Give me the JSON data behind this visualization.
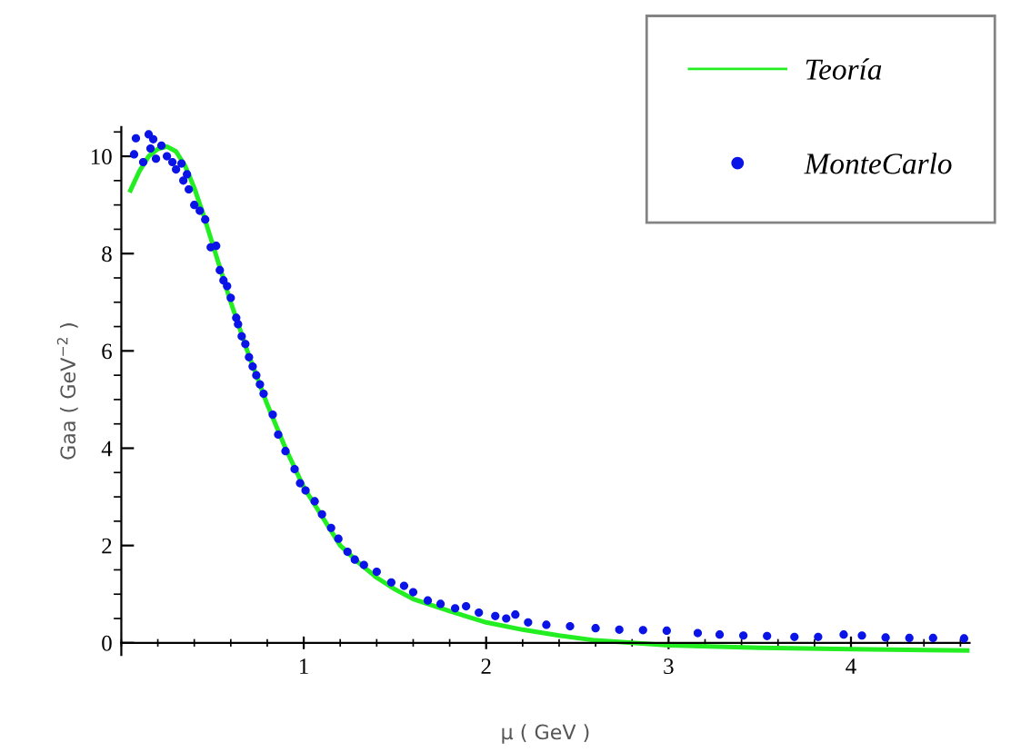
{
  "chart_data": {
    "type": "line",
    "xlabel": "μ ( GeV )",
    "ylabel": "Gaa ( GeV$^{−2}$ )",
    "xlim": [
      0,
      4.65
    ],
    "ylim": [
      -0.25,
      10.6
    ],
    "xticks": [
      1,
      2,
      3,
      4
    ],
    "yticks": [
      0,
      2,
      4,
      6,
      8,
      10
    ],
    "grid": false,
    "legend": "top right",
    "series": [
      {
        "name": "Teoría",
        "color": "#22ee22",
        "marker": "none",
        "line_style": "solid",
        "x": [
          0.05,
          0.1,
          0.15,
          0.2,
          0.25,
          0.3,
          0.35,
          0.4,
          0.45,
          0.5,
          0.55,
          0.6,
          0.7,
          0.8,
          0.9,
          1.0,
          1.1,
          1.2,
          1.3,
          1.4,
          1.5,
          1.6,
          1.8,
          2.0,
          2.2,
          2.4,
          2.6,
          2.8,
          3.0,
          3.5,
          4.0,
          4.65
        ],
        "values": [
          9.3,
          9.7,
          10.0,
          10.15,
          10.2,
          10.1,
          9.8,
          9.35,
          8.8,
          8.2,
          7.6,
          7.0,
          5.9,
          4.9,
          4.0,
          3.2,
          2.6,
          2.0,
          1.65,
          1.34,
          1.1,
          0.9,
          0.65,
          0.42,
          0.27,
          0.15,
          0.05,
          0.0,
          -0.05,
          -0.1,
          -0.13,
          -0.16
        ]
      },
      {
        "name": "MonteCarlo",
        "type": "scatter",
        "color": "#0a14e6",
        "marker": "circle",
        "x": [
          0.07,
          0.08,
          0.12,
          0.15,
          0.16,
          0.175,
          0.19,
          0.22,
          0.25,
          0.28,
          0.3,
          0.33,
          0.34,
          0.36,
          0.37,
          0.4,
          0.43,
          0.46,
          0.49,
          0.52,
          0.54,
          0.56,
          0.58,
          0.6,
          0.63,
          0.64,
          0.66,
          0.68,
          0.7,
          0.72,
          0.74,
          0.76,
          0.78,
          0.83,
          0.86,
          0.9,
          0.95,
          0.98,
          1.01,
          1.06,
          1.1,
          1.15,
          1.19,
          1.24,
          1.28,
          1.33,
          1.4,
          1.48,
          1.55,
          1.6,
          1.68,
          1.75,
          1.83,
          1.89,
          1.96,
          2.05,
          2.11,
          2.16,
          2.23,
          2.33,
          2.46,
          2.6,
          2.73,
          2.86,
          2.99,
          3.16,
          3.28,
          3.41,
          3.54,
          3.69,
          3.82,
          3.96,
          4.06,
          4.19,
          4.32,
          4.45,
          4.62
        ],
        "values": [
          10.04,
          10.37,
          9.88,
          10.45,
          10.16,
          10.35,
          9.95,
          10.22,
          10.0,
          9.88,
          9.73,
          9.85,
          9.5,
          9.63,
          9.32,
          9.0,
          8.88,
          8.7,
          8.13,
          8.16,
          7.66,
          7.45,
          7.33,
          7.09,
          6.68,
          6.55,
          6.3,
          6.14,
          5.87,
          5.68,
          5.5,
          5.31,
          5.12,
          4.69,
          4.28,
          3.94,
          3.57,
          3.28,
          3.13,
          2.91,
          2.64,
          2.36,
          2.14,
          1.87,
          1.71,
          1.6,
          1.46,
          1.24,
          1.17,
          1.04,
          0.87,
          0.8,
          0.71,
          0.75,
          0.62,
          0.55,
          0.5,
          0.58,
          0.42,
          0.37,
          0.34,
          0.3,
          0.27,
          0.26,
          0.25,
          0.2,
          0.17,
          0.15,
          0.14,
          0.12,
          0.12,
          0.17,
          0.15,
          0.11,
          0.1,
          0.1,
          0.09
        ]
      }
    ]
  }
}
